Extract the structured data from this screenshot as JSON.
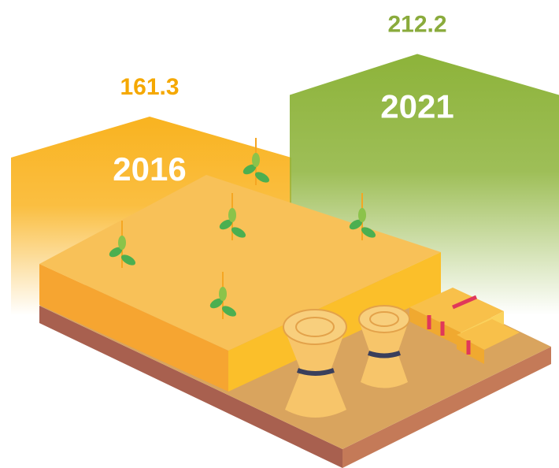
{
  "chart_data": {
    "type": "bar",
    "categories": [
      "2016",
      "2021"
    ],
    "values": [
      161.3,
      212.2
    ],
    "series_colors": [
      "#f9b320",
      "#8db33a"
    ],
    "value_label_colors": [
      "#f5a800",
      "#8aab3c"
    ]
  }
}
